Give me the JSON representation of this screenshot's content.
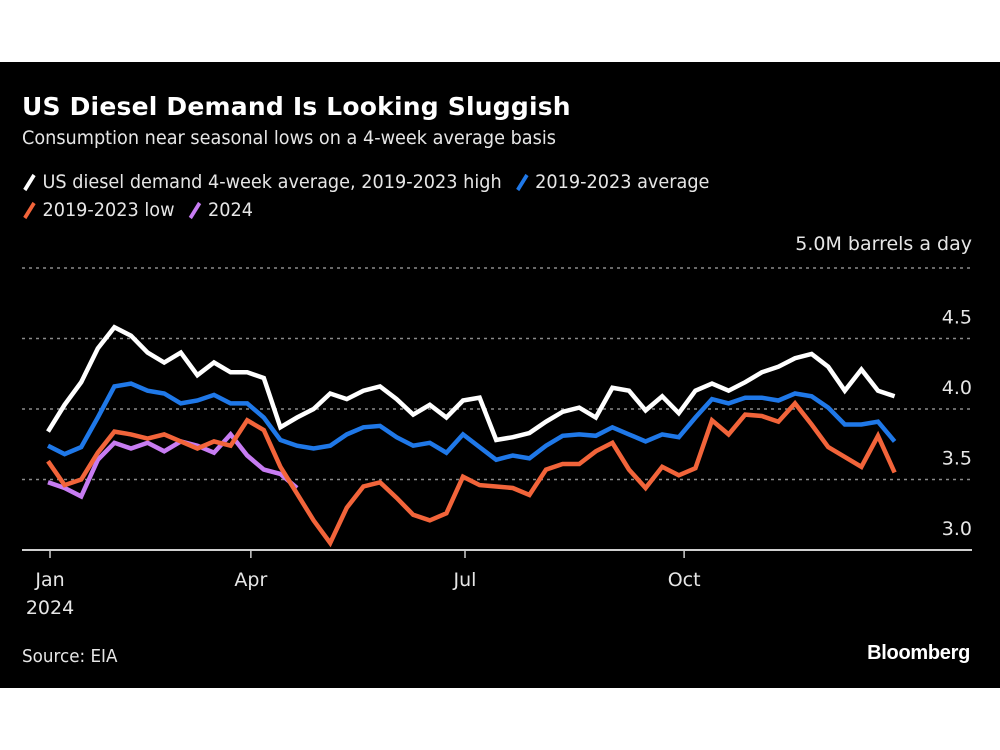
{
  "chart_data": {
    "type": "line",
    "title": "US Diesel Demand Is Looking Sluggish",
    "subtitle": "Consumption near seasonal lows on a 4-week average basis",
    "xlabel": "",
    "ylabel": "",
    "unit_label": "5.0M barrels a day",
    "ylim": [
      3.0,
      5.0
    ],
    "yticks": [
      {
        "value": 3.0,
        "label": "3.0"
      },
      {
        "value": 3.5,
        "label": "3.5"
      },
      {
        "value": 4.0,
        "label": "4.0"
      },
      {
        "value": 4.5,
        "label": "4.5"
      },
      {
        "value": 5.0,
        "label": ""
      }
    ],
    "grid": true,
    "x_weeks_total": 52,
    "xticks": [
      {
        "week": 0,
        "label": "Jan",
        "sublabel": "2024"
      },
      {
        "week": 12.1,
        "label": "Apr",
        "sublabel": ""
      },
      {
        "week": 25.0,
        "label": "Jul",
        "sublabel": ""
      },
      {
        "week": 38.2,
        "label": "Oct",
        "sublabel": ""
      }
    ],
    "legend_placement": "top-left",
    "series": [
      {
        "name": "US diesel demand 4-week average, 2019-2023 high",
        "color": "#ffffff",
        "values": [
          3.84,
          4.03,
          4.19,
          4.43,
          4.58,
          4.52,
          4.4,
          4.33,
          4.4,
          4.24,
          4.33,
          4.26,
          4.26,
          4.22,
          3.87,
          3.94,
          4.0,
          4.11,
          4.07,
          4.13,
          4.16,
          4.07,
          3.96,
          4.03,
          3.94,
          4.06,
          4.08,
          3.78,
          3.8,
          3.83,
          3.91,
          3.98,
          4.01,
          3.94,
          4.15,
          4.13,
          3.99,
          4.09,
          3.97,
          4.13,
          4.18,
          4.13,
          4.19,
          4.26,
          4.3,
          4.36,
          4.39,
          4.3,
          4.13,
          4.28,
          4.13,
          4.09
        ]
      },
      {
        "name": "2019-2023 average",
        "color": "#1f78e8",
        "values": [
          3.74,
          3.68,
          3.73,
          3.94,
          4.16,
          4.18,
          4.13,
          4.11,
          4.04,
          4.06,
          4.1,
          4.04,
          4.04,
          3.94,
          3.78,
          3.74,
          3.72,
          3.74,
          3.82,
          3.87,
          3.88,
          3.8,
          3.74,
          3.76,
          3.69,
          3.82,
          3.73,
          3.64,
          3.67,
          3.65,
          3.74,
          3.81,
          3.82,
          3.81,
          3.87,
          3.82,
          3.77,
          3.82,
          3.8,
          3.94,
          4.07,
          4.04,
          4.08,
          4.08,
          4.06,
          4.11,
          4.09,
          4.01,
          3.89,
          3.89,
          3.91,
          3.77
        ]
      },
      {
        "name": "2019-2023 low",
        "color": "#f2643a",
        "values": [
          3.63,
          3.46,
          3.5,
          3.69,
          3.84,
          3.82,
          3.79,
          3.82,
          3.77,
          3.72,
          3.77,
          3.74,
          3.92,
          3.85,
          3.59,
          3.4,
          3.21,
          3.05,
          3.3,
          3.45,
          3.48,
          3.37,
          3.25,
          3.21,
          3.26,
          3.52,
          3.46,
          3.45,
          3.44,
          3.39,
          3.57,
          3.61,
          3.61,
          3.7,
          3.76,
          3.57,
          3.44,
          3.59,
          3.53,
          3.58,
          3.92,
          3.82,
          3.96,
          3.95,
          3.91,
          4.04,
          3.89,
          3.73,
          3.66,
          3.59,
          3.81,
          3.55
        ]
      },
      {
        "name": "2024",
        "color": "#c77cf2",
        "values": [
          3.48,
          3.44,
          3.38,
          3.64,
          3.76,
          3.72,
          3.76,
          3.7,
          3.77,
          3.74,
          3.69,
          3.82,
          3.67,
          3.57,
          3.54,
          3.44
        ]
      }
    ],
    "source": "Source: EIA",
    "brand": "Bloomberg"
  }
}
